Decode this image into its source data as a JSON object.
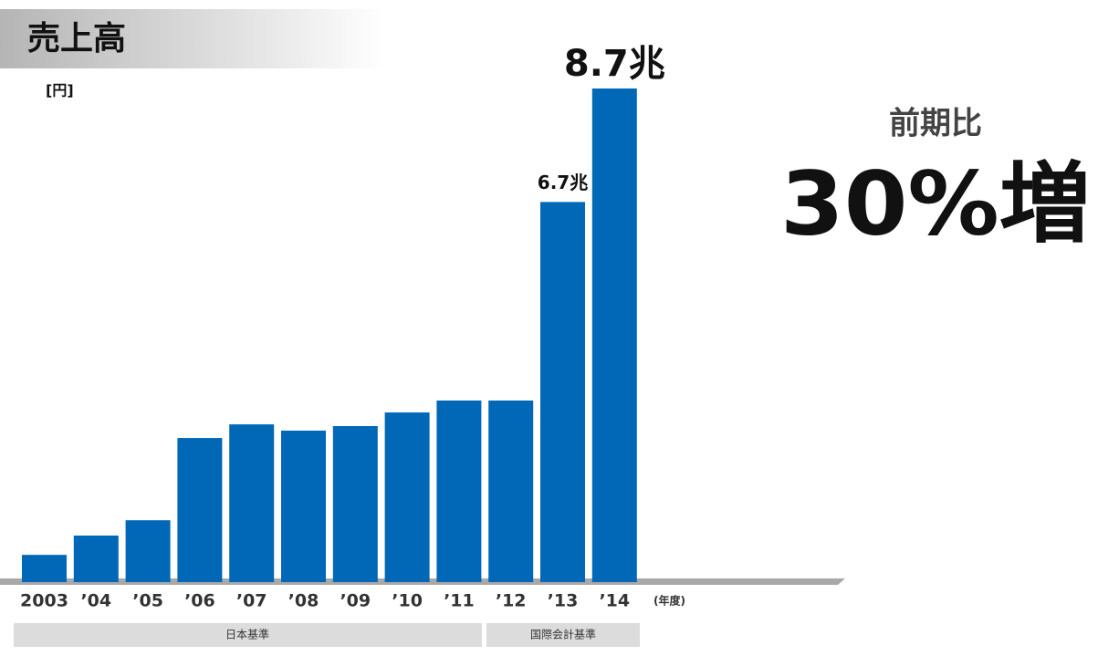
{
  "chart_data": {
    "type": "bar",
    "title": "売上高",
    "y_unit": "[円]",
    "x_unit": "(年度)",
    "categories": [
      "2003",
      "’04",
      "’05",
      "’06",
      "’07",
      "’08",
      "’09",
      "’10",
      "’11",
      "’12",
      "’13",
      "’14"
    ],
    "values": [
      0.48,
      0.82,
      1.09,
      2.54,
      2.78,
      2.67,
      2.75,
      2.99,
      3.2,
      3.2,
      6.7,
      8.7
    ],
    "value_labels": [
      null,
      null,
      null,
      null,
      null,
      null,
      null,
      null,
      null,
      null,
      "6.7兆",
      "8.7兆"
    ],
    "color": "#0068b7",
    "groups": [
      "日本基準",
      "国際会計基準"
    ],
    "annotation": {
      "label": "前期比",
      "text": "30%増"
    }
  }
}
